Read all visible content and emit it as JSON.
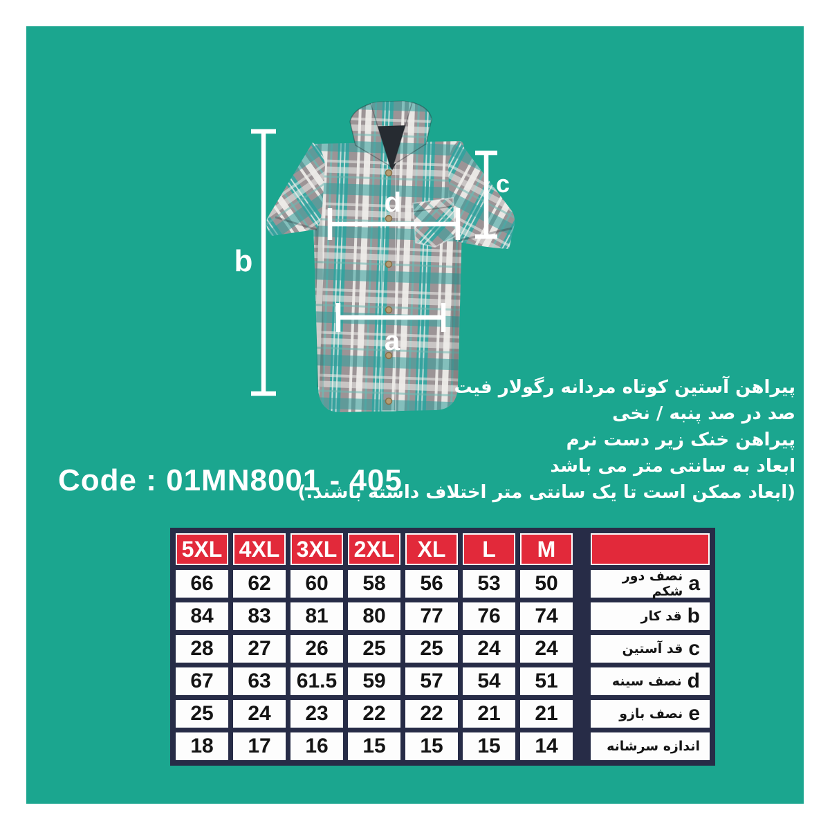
{
  "page": {
    "panel_color": "#1ba68f",
    "frame_color": "#ffffff"
  },
  "product": {
    "code_label": "Code : 01MN8001 - 405",
    "description_lines": [
      "پیراهن آستین کوتاه مردانه رگولار فیت",
      "صد در صد پنبه / نخی",
      "پیراهن خنک زیر دست نرم",
      "ابعاد به سانتی متر می باشد",
      "(ابعاد ممکن است تا یک سانتی متر اختلاف داشته باشند.)"
    ]
  },
  "diagram": {
    "labels": {
      "a": "a",
      "b": "b",
      "c": "c",
      "d": "d"
    },
    "shirt_colors": {
      "base_gray": "#9c9496",
      "plaid_teal": "#3ba7a2",
      "plaid_white": "#e9e7e4",
      "collar_inner": "#262b31",
      "button": "#b59c72"
    },
    "line_color": "#ffffff"
  },
  "size_table": {
    "header_color": "#e2293a",
    "border_color": "#272c47",
    "cell_color": "#fdfdfd",
    "columns": [
      "5XL",
      "4XL",
      "3XL",
      "2XL",
      "XL",
      "L",
      "M"
    ],
    "rows": [
      {
        "letter": "a",
        "label": "نصف دور شکم",
        "values": [
          "66",
          "62",
          "60",
          "58",
          "56",
          "53",
          "50"
        ]
      },
      {
        "letter": "b",
        "label": "قد کار",
        "values": [
          "84",
          "83",
          "81",
          "80",
          "77",
          "76",
          "74"
        ]
      },
      {
        "letter": "c",
        "label": "قد آستین",
        "values": [
          "28",
          "27",
          "26",
          "25",
          "25",
          "24",
          "24"
        ]
      },
      {
        "letter": "d",
        "label": "نصف سینه",
        "values": [
          "67",
          "63",
          "61.5",
          "59",
          "57",
          "54",
          "51"
        ]
      },
      {
        "letter": "e",
        "label": "نصف بازو",
        "values": [
          "25",
          "24",
          "23",
          "22",
          "22",
          "21",
          "21"
        ]
      },
      {
        "letter": "",
        "label": "اندازه سرشانه",
        "values": [
          "18",
          "17",
          "16",
          "15",
          "15",
          "15",
          "14"
        ]
      }
    ]
  }
}
